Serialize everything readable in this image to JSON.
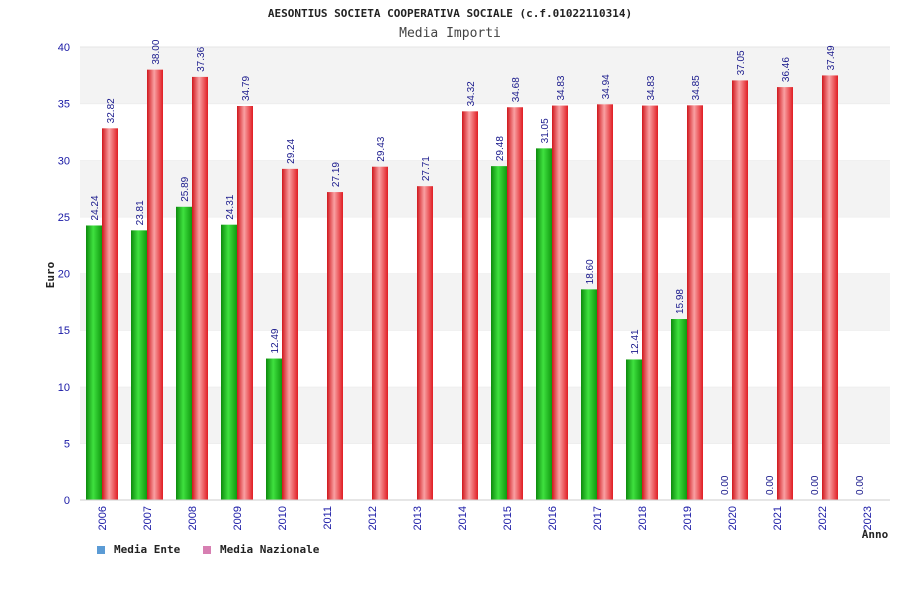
{
  "chart_data": {
    "type": "bar",
    "title": "AESONTIUS SOCIETA COOPERATIVA SOCIALE (c.f.01022110314)",
    "subtitle": "Media Importi",
    "xlabel": "Anno",
    "ylabel": "Euro",
    "ylim": [
      0,
      40
    ],
    "yticks": [
      0,
      5,
      10,
      15,
      20,
      25,
      30,
      35,
      40
    ],
    "categories": [
      "2006",
      "2007",
      "2008",
      "2009",
      "2010",
      "2011",
      "2012",
      "2013",
      "2014",
      "2015",
      "2016",
      "2017",
      "2018",
      "2019",
      "2020",
      "2021",
      "2022",
      "2023"
    ],
    "series": [
      {
        "name": "Media Ente",
        "color": "#1fb81f",
        "legend_color": "#5b9bd5",
        "values": [
          24.24,
          23.81,
          25.89,
          24.31,
          12.49,
          null,
          null,
          null,
          null,
          29.48,
          31.05,
          18.6,
          12.41,
          15.98,
          0.0,
          0.0,
          0.0,
          0.0
        ],
        "labels": [
          "24.24",
          "23.81",
          "25.89",
          "24.31",
          "12.49",
          null,
          null,
          null,
          null,
          "29.48",
          "31.05",
          "18.60",
          "12.41",
          "15.98",
          "0.00",
          "0.00",
          "0.00",
          "0.00"
        ]
      },
      {
        "name": "Media Nazionale",
        "color": "#e8262b",
        "legend_color": "#d77fb2",
        "values": [
          32.82,
          38.0,
          37.36,
          34.79,
          29.24,
          27.19,
          29.43,
          27.71,
          34.32,
          34.68,
          34.83,
          34.94,
          34.83,
          34.85,
          37.05,
          36.46,
          37.49,
          null
        ],
        "labels": [
          "32.82",
          "38.00",
          "37.36",
          "34.79",
          "29.24",
          "27.19",
          "29.43",
          "27.71",
          "34.32",
          "34.68",
          "34.83",
          "34.94",
          "34.83",
          "34.85",
          "37.05",
          "36.46",
          "37.49",
          null
        ]
      }
    ],
    "grid": true,
    "legend": "bottom-left"
  }
}
